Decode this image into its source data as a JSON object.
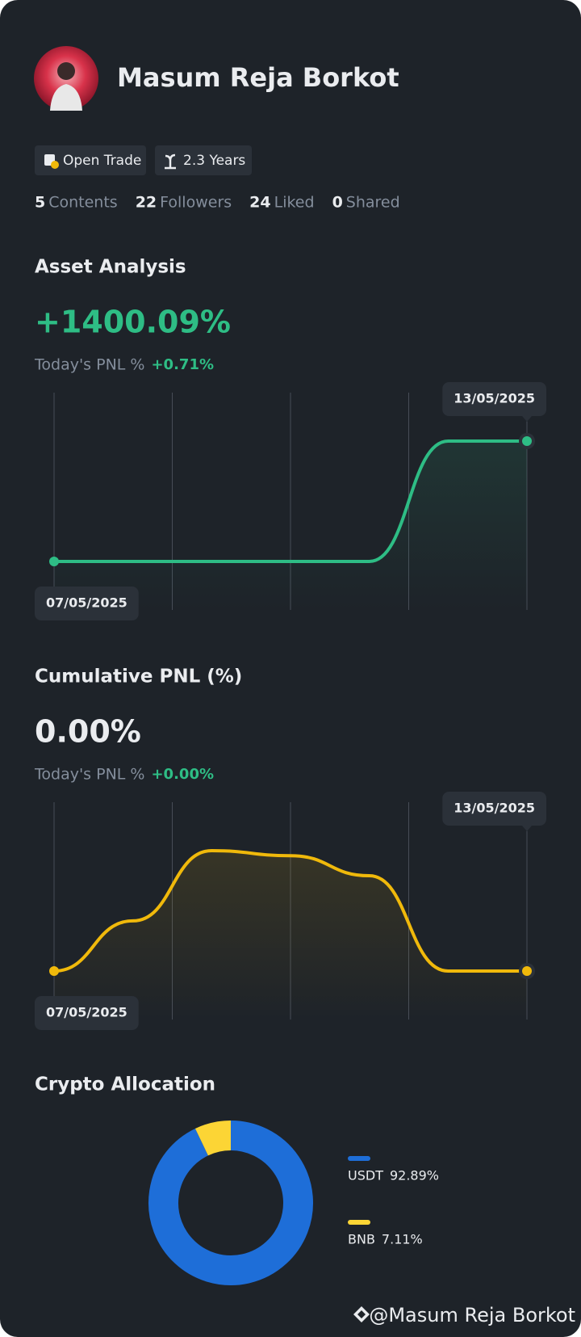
{
  "profile": {
    "name": "Masum Reja Borkot",
    "badges": [
      "Open Trade",
      "2.3 Years"
    ],
    "stats": [
      {
        "count": 5,
        "label": "Contents"
      },
      {
        "count": 22,
        "label": "Followers"
      },
      {
        "count": 24,
        "label": "Liked"
      },
      {
        "count": 0,
        "label": "Shared"
      }
    ]
  },
  "chart_data": [
    {
      "type": "line",
      "title": "Asset Analysis",
      "summary": "+1400.09%",
      "pnl_label": "Today's PNL %",
      "pnl_value": "+0.71%",
      "categories": [
        "07/05/2025",
        null,
        null,
        null,
        null,
        null,
        "13/05/2025"
      ],
      "series": [
        {
          "color": "#2ebd85",
          "values": [
            0,
            0,
            0,
            0,
            0,
            1400.09,
            1400.09
          ]
        }
      ]
    },
    {
      "type": "line",
      "title": "Cumulative PNL (%)",
      "summary": "0.00%",
      "pnl_label": "Today's PNL %",
      "pnl_value": "+0.00%",
      "categories": [
        "07/05/2025",
        null,
        null,
        null,
        null,
        null,
        "13/05/2025"
      ],
      "series": [
        {
          "color": "#f0b90b",
          "values": [
            0,
            1.0,
            2.4,
            2.3,
            1.9,
            0,
            0
          ]
        }
      ]
    },
    {
      "type": "pie",
      "title": "Crypto Allocation",
      "donut": true,
      "categories": [
        "USDT",
        "BNB"
      ],
      "values": [
        92.89,
        7.11
      ],
      "value_labels": [
        "92.89%",
        "7.11%"
      ],
      "colors": [
        "#1e6ed8",
        "#fcd535"
      ]
    }
  ],
  "footer": "@Masum Reja Borkot"
}
